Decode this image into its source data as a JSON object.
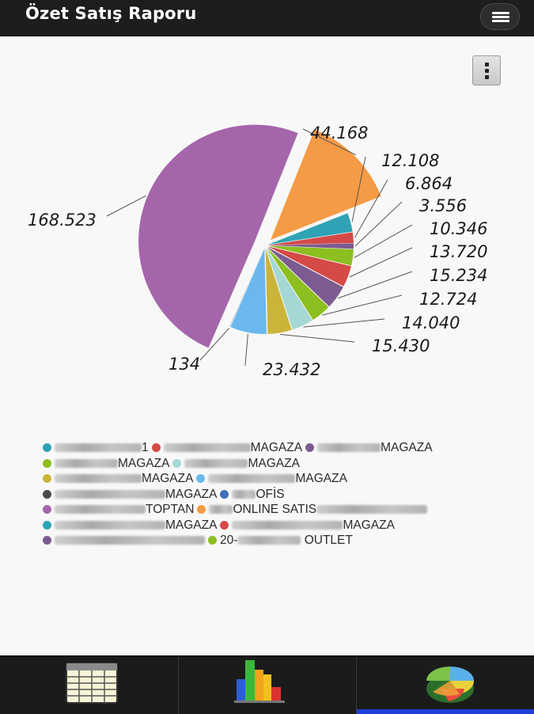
{
  "app": {
    "title": "Özet Satış Raporu"
  },
  "toolbar": {
    "menu_icon": "hamburger-menu-icon",
    "overflow_icon": "vertical-dots-icon"
  },
  "chart_data": {
    "type": "pie",
    "title": "",
    "slices": [
      {
        "label": "44.168",
        "value": 44168,
        "color": "#f59a45"
      },
      {
        "label": "12.108",
        "value": 12108,
        "color": "#2fa3b5"
      },
      {
        "label": "6.864",
        "value": 6864,
        "color": "#d54a46"
      },
      {
        "label": "3.556",
        "value": 3556,
        "color": "#7c5b91"
      },
      {
        "label": "10.346",
        "value": 10346,
        "color": "#8cbf1f"
      },
      {
        "label": "13.720",
        "value": 13720,
        "color": "#d54a46"
      },
      {
        "label": "15.234",
        "value": 15234,
        "color": "#7c5b91"
      },
      {
        "label": "12.724",
        "value": 12724,
        "color": "#8cbf1f"
      },
      {
        "label": "14.040",
        "value": 14040,
        "color": "#a5d8d4"
      },
      {
        "label": "15.430",
        "value": 15430,
        "color": "#cbb43a"
      },
      {
        "label": "23.432",
        "value": 23432,
        "color": "#6ab8ee"
      },
      {
        "label": "134",
        "value": 134,
        "color": "#4a4a4a"
      },
      {
        "label": "168.523",
        "value": 168523,
        "color": "#a565ab"
      }
    ]
  },
  "legend": {
    "rows": [
      [
        {
          "text": "1",
          "color": "#2fa3b5",
          "blur": 110
        },
        {
          "text": "MAGAZA",
          "color": "#d54a46",
          "blur": 110
        },
        {
          "text": "MAGAZA",
          "color": "#7c5b91",
          "blur": 80
        }
      ],
      [
        {
          "text": "MAGAZA",
          "color": "#8cbf1f",
          "blur": 80
        },
        {
          "text": "MAGAZA",
          "color": "#a5d8d4",
          "blur": 80
        }
      ],
      [
        {
          "text": "MAGAZA",
          "color": "#cbb43a",
          "blur": 110
        },
        {
          "text": "MAGAZA",
          "color": "#6ab8ee",
          "blur": 110
        }
      ],
      [
        {
          "text": "MAGAZA",
          "color": "#4a4a4a",
          "blur": 140
        },
        {
          "text": "OFİS",
          "color": "#3e6fb8",
          "blur": 30
        }
      ],
      [
        {
          "text": "TOPTAN",
          "color": "#a565ab",
          "blur": 115
        },
        {
          "text": "ONLINE SATIS",
          "color": "#f59a45",
          "blur": 30,
          "trail": 140
        }
      ],
      [
        {
          "text": "MAGAZA",
          "color": "#2fa3b5",
          "blur": 140
        },
        {
          "text": "MAGAZA",
          "color": "#d54a46",
          "blur": 140
        }
      ],
      [
        {
          "text": "",
          "color": "#7c5b91",
          "blur": 190
        },
        {
          "text": "20-",
          "color": "#8cbf1f",
          "blur": 0,
          "mid": 80,
          "text2": "OUTLET"
        }
      ]
    ]
  },
  "tabs": [
    {
      "name": "table-view",
      "icon": "spreadsheet-icon"
    },
    {
      "name": "bar-chart-view",
      "icon": "bar-chart-icon"
    },
    {
      "name": "pie-chart-view",
      "icon": "pie-chart-icon",
      "active": true
    }
  ]
}
